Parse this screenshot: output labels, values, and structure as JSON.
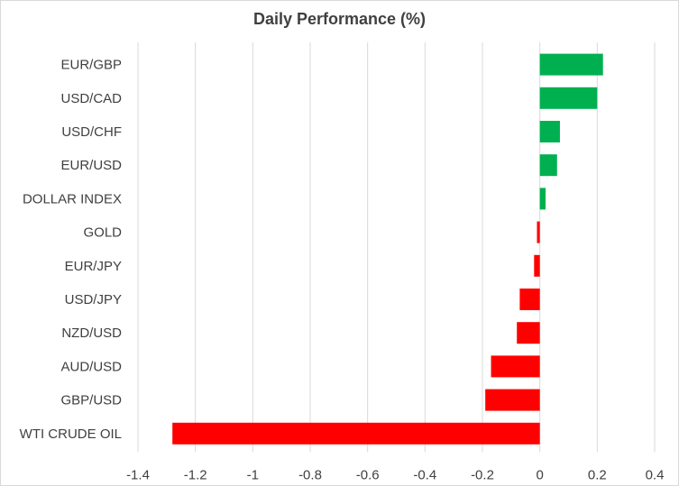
{
  "chart_data": {
    "type": "bar",
    "orientation": "horizontal",
    "title": "Daily Performance (%)",
    "categories": [
      "EUR/GBP",
      "USD/CAD",
      "USD/CHF",
      "EUR/USD",
      "DOLLAR INDEX",
      "GOLD",
      "EUR/JPY",
      "USD/JPY",
      "NZD/USD",
      "AUD/USD",
      "GBP/USD",
      "WTI CRUDE OIL"
    ],
    "values": [
      0.22,
      0.2,
      0.07,
      0.06,
      0.02,
      -0.01,
      -0.02,
      -0.07,
      -0.08,
      -0.17,
      -0.19,
      -1.28
    ],
    "xlim": [
      -1.4,
      0.4
    ],
    "x_ticks": [
      "-1.4",
      "-1.2",
      "-1",
      "-0.8",
      "-0.6",
      "-0.4",
      "-0.2",
      "0",
      "0.2",
      "0.4"
    ],
    "grid": "vertical",
    "legend": "none",
    "colors": {
      "positive": "#00b050",
      "negative": "#ff0000"
    }
  }
}
